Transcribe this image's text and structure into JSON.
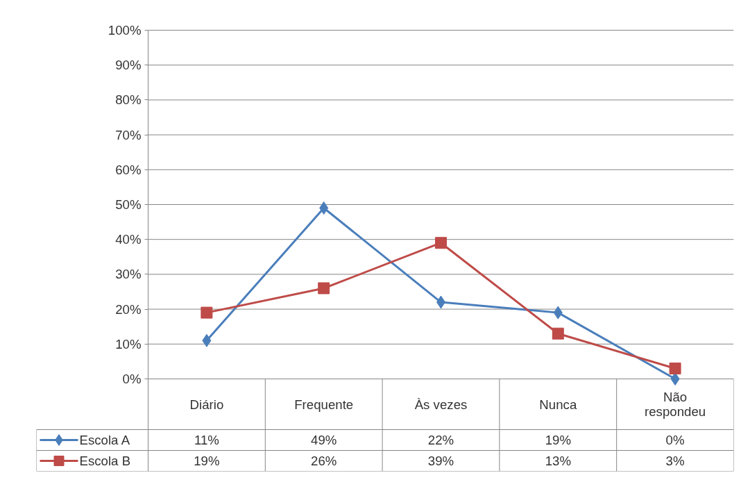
{
  "chart_data": {
    "type": "line",
    "categories": [
      "Diário",
      "Frequente",
      "Às vezes",
      "Nunca",
      "Não respondeu"
    ],
    "series": [
      {
        "name": "Escola A",
        "color": "#4a7ebb",
        "marker": "diamond",
        "values": [
          11,
          49,
          22,
          19,
          0
        ],
        "value_labels": [
          "11%",
          "49%",
          "22%",
          "19%",
          "0%"
        ]
      },
      {
        "name": "Escola B",
        "color": "#be4b48",
        "marker": "square",
        "values": [
          19,
          26,
          39,
          13,
          3
        ],
        "value_labels": [
          "19%",
          "26%",
          "39%",
          "13%",
          "3%"
        ]
      }
    ],
    "ylim": [
      0,
      100
    ],
    "yticks": [
      {
        "value": 0,
        "label": "0%"
      },
      {
        "value": 10,
        "label": "10%"
      },
      {
        "value": 20,
        "label": "20%"
      },
      {
        "value": 30,
        "label": "30%"
      },
      {
        "value": 40,
        "label": "40%"
      },
      {
        "value": 50,
        "label": "50%"
      },
      {
        "value": 60,
        "label": "60%"
      },
      {
        "value": 70,
        "label": "70%"
      },
      {
        "value": 80,
        "label": "80%"
      },
      {
        "value": 90,
        "label": "90%"
      },
      {
        "value": 100,
        "label": "100%"
      }
    ],
    "grid": "y",
    "legend": "bottom"
  }
}
